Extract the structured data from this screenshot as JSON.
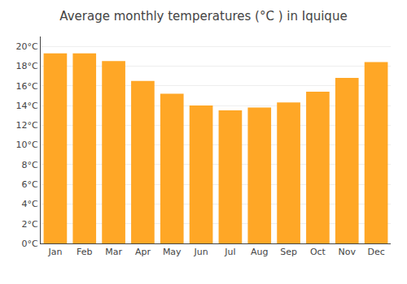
{
  "chart_data": {
    "type": "bar",
    "title": "Average monthly temperatures (°C ) in Iquique",
    "categories": [
      "Jan",
      "Feb",
      "Mar",
      "Apr",
      "May",
      "Jun",
      "Jul",
      "Aug",
      "Sep",
      "Oct",
      "Nov",
      "Dec"
    ],
    "values": [
      19.3,
      19.3,
      18.5,
      16.5,
      15.2,
      14.0,
      13.5,
      13.8,
      14.3,
      15.4,
      16.8,
      18.4
    ],
    "color": "#FFA726",
    "ylim": [
      0,
      21
    ],
    "yticks": [
      {
        "value": 0,
        "label": "0°C"
      },
      {
        "value": 2,
        "label": "2°C"
      },
      {
        "value": 4,
        "label": "4°C"
      },
      {
        "value": 6,
        "label": "6°C"
      },
      {
        "value": 8,
        "label": "8°C"
      },
      {
        "value": 10,
        "label": "10°C"
      },
      {
        "value": 12,
        "label": "12°C"
      },
      {
        "value": 14,
        "label": "14°C"
      },
      {
        "value": 16,
        "label": "16°C"
      },
      {
        "value": 18,
        "label": "18°C"
      },
      {
        "value": 20,
        "label": "20°C"
      }
    ],
    "grid": true
  }
}
